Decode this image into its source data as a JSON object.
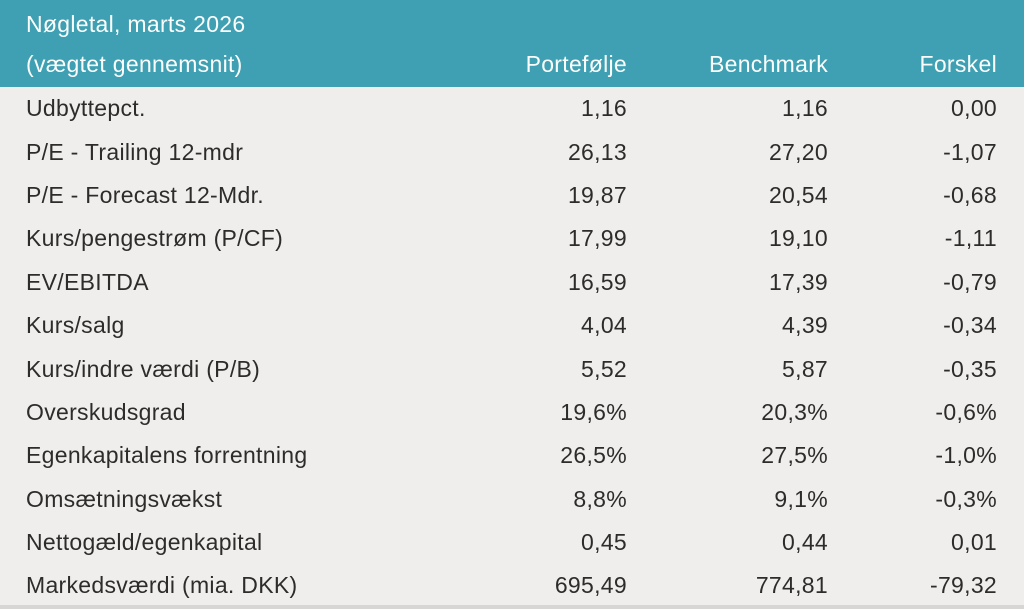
{
  "colors": {
    "header_background": "#3EA0B2",
    "header_text": "#FBFDFD",
    "body_background": "#EFEEEC",
    "body_text": "#2D2C2A",
    "bottom_strip": "#D7D6D4"
  },
  "chart_data": {
    "type": "table",
    "title": "Nøgletal, marts 2026",
    "subtitle": "(vægtet gennemsnit)",
    "columns": [
      "",
      "Portefølje",
      "Benchmark",
      "Forskel"
    ],
    "rows": [
      [
        "Udbyttepct.",
        "1,16",
        "1,16",
        "0,00"
      ],
      [
        "P/E - Trailing 12-mdr",
        "26,13",
        "27,20",
        "-1,07"
      ],
      [
        "P/E - Forecast 12-Mdr.",
        "19,87",
        "20,54",
        "-0,68"
      ],
      [
        "Kurs/pengestrøm (P/CF)",
        "17,99",
        "19,10",
        "-1,11"
      ],
      [
        "EV/EBITDA",
        "16,59",
        "17,39",
        "-0,79"
      ],
      [
        "Kurs/salg",
        "4,04",
        "4,39",
        "-0,34"
      ],
      [
        "Kurs/indre værdi (P/B)",
        "5,52",
        "5,87",
        "-0,35"
      ],
      [
        "Overskudsgrad",
        "19,6%",
        "20,3%",
        "-0,6%"
      ],
      [
        "Egenkapitalens forrentning",
        "26,5%",
        "27,5%",
        "-1,0%"
      ],
      [
        "Omsætningsvækst",
        "8,8%",
        "9,1%",
        "-0,3%"
      ],
      [
        "Nettogæld/egenkapital",
        "0,45",
        "0,44",
        "0,01"
      ],
      [
        "Markedsværdi (mia. DKK)",
        "695,49",
        "774,81",
        "-79,32"
      ]
    ]
  }
}
